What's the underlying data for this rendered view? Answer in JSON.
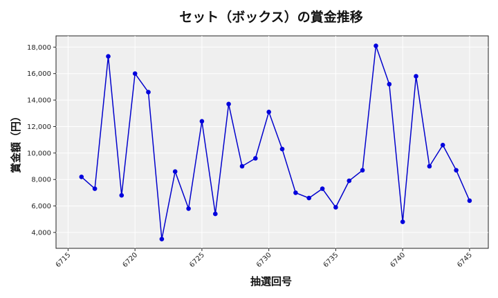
{
  "chart_data": {
    "type": "line",
    "title": "セット（ボックス）の賞金推移",
    "xlabel": "抽選回号",
    "ylabel": "賞金額（円）",
    "xlim": [
      6714.1,
      6746.4
    ],
    "ylim": [
      2800,
      18850
    ],
    "x_ticks": [
      6715,
      6720,
      6725,
      6730,
      6735,
      6740,
      6745
    ],
    "y_ticks": [
      4000,
      6000,
      8000,
      10000,
      12000,
      14000,
      16000,
      18000
    ],
    "y_tick_labels": [
      "4,000",
      "6,000",
      "8,000",
      "10,000",
      "12,000",
      "14,000",
      "16,000",
      "18,000"
    ],
    "grid": true,
    "colors": {
      "line": "#0000cc",
      "marker": "#0000dd",
      "plot_background": "#efefef",
      "grid": "#ffffff"
    },
    "series": [
      {
        "x": [
          6716,
          6717,
          6718,
          6719,
          6720,
          6721,
          6722,
          6723,
          6724,
          6725,
          6726,
          6727,
          6728,
          6729,
          6730,
          6731,
          6732,
          6733,
          6734,
          6735,
          6736,
          6737,
          6738,
          6739,
          6740,
          6741,
          6742,
          6743,
          6744,
          6745
        ],
        "values": [
          8200,
          7300,
          17300,
          6800,
          16000,
          14600,
          3500,
          8600,
          5800,
          12400,
          5400,
          13700,
          9000,
          9600,
          13100,
          10300,
          7000,
          6600,
          7300,
          5900,
          7900,
          8700,
          18100,
          15200,
          4800,
          15800,
          9000,
          10600,
          8700,
          6400
        ]
      }
    ]
  }
}
